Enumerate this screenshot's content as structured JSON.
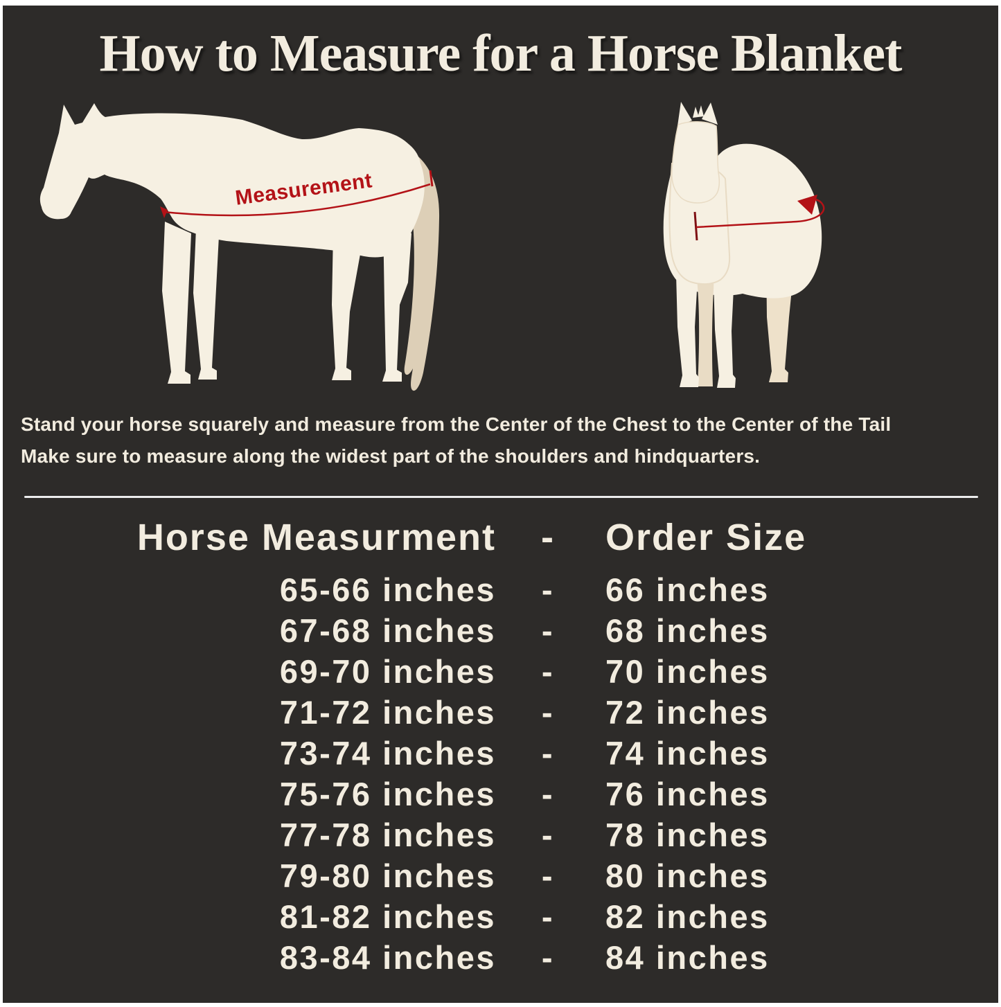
{
  "page": {
    "title": "How to Measure for a Horse Blanket"
  },
  "diagram": {
    "side_view_label": "Measurement"
  },
  "instructions": {
    "line1": "Stand your horse squarely and measure from the Center of the Chest to the Center of the Tail",
    "line2": "Make sure to measure along the widest part of the shoulders and hindquarters."
  },
  "size_table": {
    "header": {
      "measurement": "Horse Measurment",
      "separator": "-",
      "size": "Order Size"
    },
    "rows": [
      {
        "measurement": "65-66 inches",
        "separator": "-",
        "size": "66 inches"
      },
      {
        "measurement": "67-68 inches",
        "separator": "-",
        "size": "68 inches"
      },
      {
        "measurement": "69-70 inches",
        "separator": "-",
        "size": "70 inches"
      },
      {
        "measurement": "71-72 inches",
        "separator": "-",
        "size": "72 inches"
      },
      {
        "measurement": "73-74 inches",
        "separator": "-",
        "size": "74 inches"
      },
      {
        "measurement": "75-76 inches",
        "separator": "-",
        "size": "76 inches"
      },
      {
        "measurement": "77-78 inches",
        "separator": "-",
        "size": "78 inches"
      },
      {
        "measurement": "79-80 inches",
        "separator": "-",
        "size": "80 inches"
      },
      {
        "measurement": "81-82 inches",
        "separator": "-",
        "size": "82 inches"
      },
      {
        "measurement": "83-84 inches",
        "separator": "-",
        "size": "84 inches"
      }
    ]
  },
  "colors": {
    "background": "#2d2b29",
    "frame": "#ffffff",
    "text_cream": "#f2ecdf",
    "horse_body": "#f6f0e2",
    "horse_tail": "#ddcfb7",
    "accent_red": "#b31217"
  }
}
